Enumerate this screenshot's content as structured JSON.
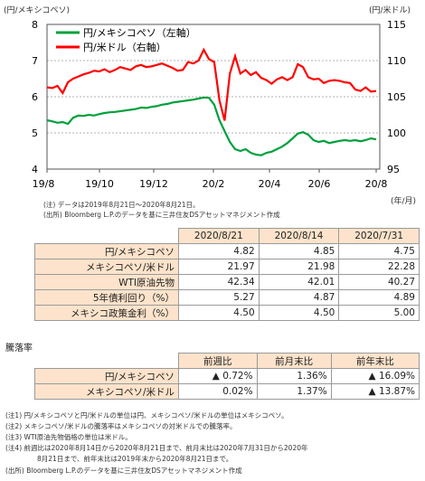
{
  "chart_data": {
    "type": "line",
    "left_unit": "(円/メキシコペソ)",
    "right_unit": "(円/米ドル)",
    "x_unit": "(年/月)",
    "x_ticks": [
      "19/8",
      "19/10",
      "19/12",
      "20/2",
      "20/4",
      "20/6",
      "20/8"
    ],
    "y_left_ticks": [
      "8",
      "7",
      "6",
      "5",
      "4"
    ],
    "y_right_ticks": [
      "115",
      "110",
      "105",
      "100",
      "95"
    ],
    "ylim_left": [
      4,
      8
    ],
    "ylim_right": [
      95,
      115
    ],
    "grid": true,
    "legend": "top-left",
    "series": [
      {
        "name": "円/メキシコペソ（左軸）",
        "axis": "left",
        "color": "#00a03c",
        "values": [
          5.35,
          5.32,
          5.28,
          5.3,
          5.25,
          5.42,
          5.48,
          5.47,
          5.5,
          5.48,
          5.52,
          5.55,
          5.57,
          5.58,
          5.6,
          5.62,
          5.64,
          5.66,
          5.7,
          5.69,
          5.72,
          5.74,
          5.78,
          5.8,
          5.84,
          5.86,
          5.88,
          5.9,
          5.92,
          5.95,
          5.98,
          5.97,
          5.78,
          5.35,
          5.05,
          4.75,
          4.55,
          4.5,
          4.55,
          4.45,
          4.4,
          4.38,
          4.45,
          4.48,
          4.55,
          4.62,
          4.72,
          4.85,
          4.98,
          5.02,
          4.95,
          4.8,
          4.75,
          4.78,
          4.72,
          4.75,
          4.78,
          4.8,
          4.78,
          4.8,
          4.77,
          4.8,
          4.85,
          4.82
        ]
      },
      {
        "name": "円/米ドル（右軸）",
        "axis": "right",
        "color": "#ff0000",
        "values": [
          106.3,
          106.2,
          106.5,
          105.5,
          107.0,
          107.5,
          107.8,
          108.1,
          108.3,
          108.6,
          108.5,
          108.8,
          108.4,
          108.7,
          109.1,
          108.9,
          108.7,
          109.2,
          109.4,
          109.1,
          109.2,
          109.4,
          109.6,
          109.3,
          109.0,
          108.6,
          108.7,
          109.8,
          109.6,
          110.0,
          111.5,
          110.2,
          109.8,
          104.5,
          101.7,
          108.2,
          110.6,
          108.2,
          108.7,
          108.0,
          108.4,
          107.6,
          107.3,
          106.8,
          107.4,
          107.7,
          107.3,
          107.7,
          109.5,
          109.1,
          107.7,
          107.4,
          107.5,
          106.9,
          107.2,
          107.3,
          107.2,
          107.0,
          106.9,
          106.0,
          105.8,
          106.3,
          105.7,
          105.8
        ]
      }
    ]
  },
  "notes_chart": [
    "(注)  データは2019年8月21日～2020年8月21日。",
    "(出所)  Bloomberg L.P.のデータを基に三井住友DSアセットマネジメント作成"
  ],
  "table1": {
    "headers": [
      "2020/8/21",
      "2020/8/14",
      "2020/7/31"
    ],
    "rows": [
      {
        "label": "円/メキシコペソ",
        "values": [
          "4.82",
          "4.85",
          "4.75"
        ]
      },
      {
        "label": "メキシコペソ/米ドル",
        "values": [
          "21.97",
          "21.98",
          "22.28"
        ]
      },
      {
        "label": "WTI原油先物",
        "values": [
          "42.34",
          "42.01",
          "40.27"
        ]
      },
      {
        "label": "5年債利回り（%）",
        "values": [
          "5.27",
          "4.87",
          "4.89"
        ]
      },
      {
        "label": "メキシコ政策金利（%）",
        "values": [
          "4.50",
          "4.50",
          "5.00"
        ]
      }
    ]
  },
  "table2": {
    "title": "騰落率",
    "headers": [
      "前週比",
      "前月末比",
      "前年末比"
    ],
    "rows": [
      {
        "label": "円/メキシコペソ",
        "values": [
          "▲ 0.72%",
          "1.36%",
          "▲ 16.09%"
        ]
      },
      {
        "label": "メキシコペソ/米ドル",
        "values": [
          "0.02%",
          "1.37%",
          "▲ 13.87%"
        ]
      }
    ]
  },
  "notes_bottom": [
    "(注1)  円/メキシコペソと円/米ドルの単位は円、メキシコペソ/米ドルの単位はメキシコペソ。",
    "(注2)  メキシコペソ/米ドルの騰落率はメキシコペソの対米ドルでの騰落率。",
    "(注3)  WTI原油先物価格の単位は米ドル。",
    "(注4)  前週比は2020年8月14日から2020年8月21日まで、前月末比は2020年7月31日から2020年",
    "8月21日まで、前年末比は2019年末から2020年8月21日まで。",
    "(出所)  Bloomberg L.P.のデータを基に三井住友DSアセットマネジメント作成"
  ]
}
